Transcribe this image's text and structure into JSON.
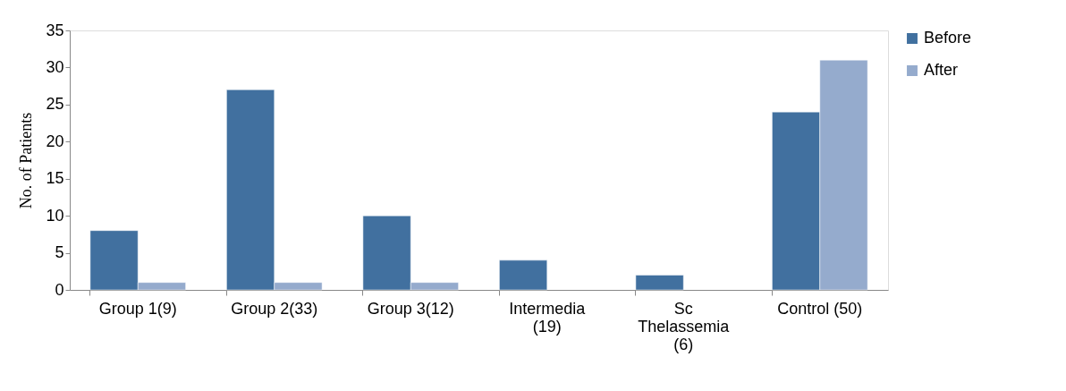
{
  "chart_data": {
    "type": "bar",
    "ylabel": "No. of Patients",
    "categories": [
      "Group 1(9)",
      "Group 2(33)",
      "Group 3(12)",
      "Intermedia\n(19)",
      "Sc\nThelassemia\n(6)",
      "Control (50)"
    ],
    "series": [
      {
        "name": "Before",
        "color": "#41709f",
        "values": [
          8,
          27,
          10,
          4,
          2,
          24
        ]
      },
      {
        "name": "After",
        "color": "#95abcd",
        "values": [
          1,
          1,
          1,
          null,
          null,
          31
        ]
      }
    ],
    "ylim": [
      0,
      35
    ],
    "yticks": [
      0,
      5,
      10,
      15,
      20,
      25,
      30,
      35
    ],
    "grid": false,
    "legend": "right"
  }
}
